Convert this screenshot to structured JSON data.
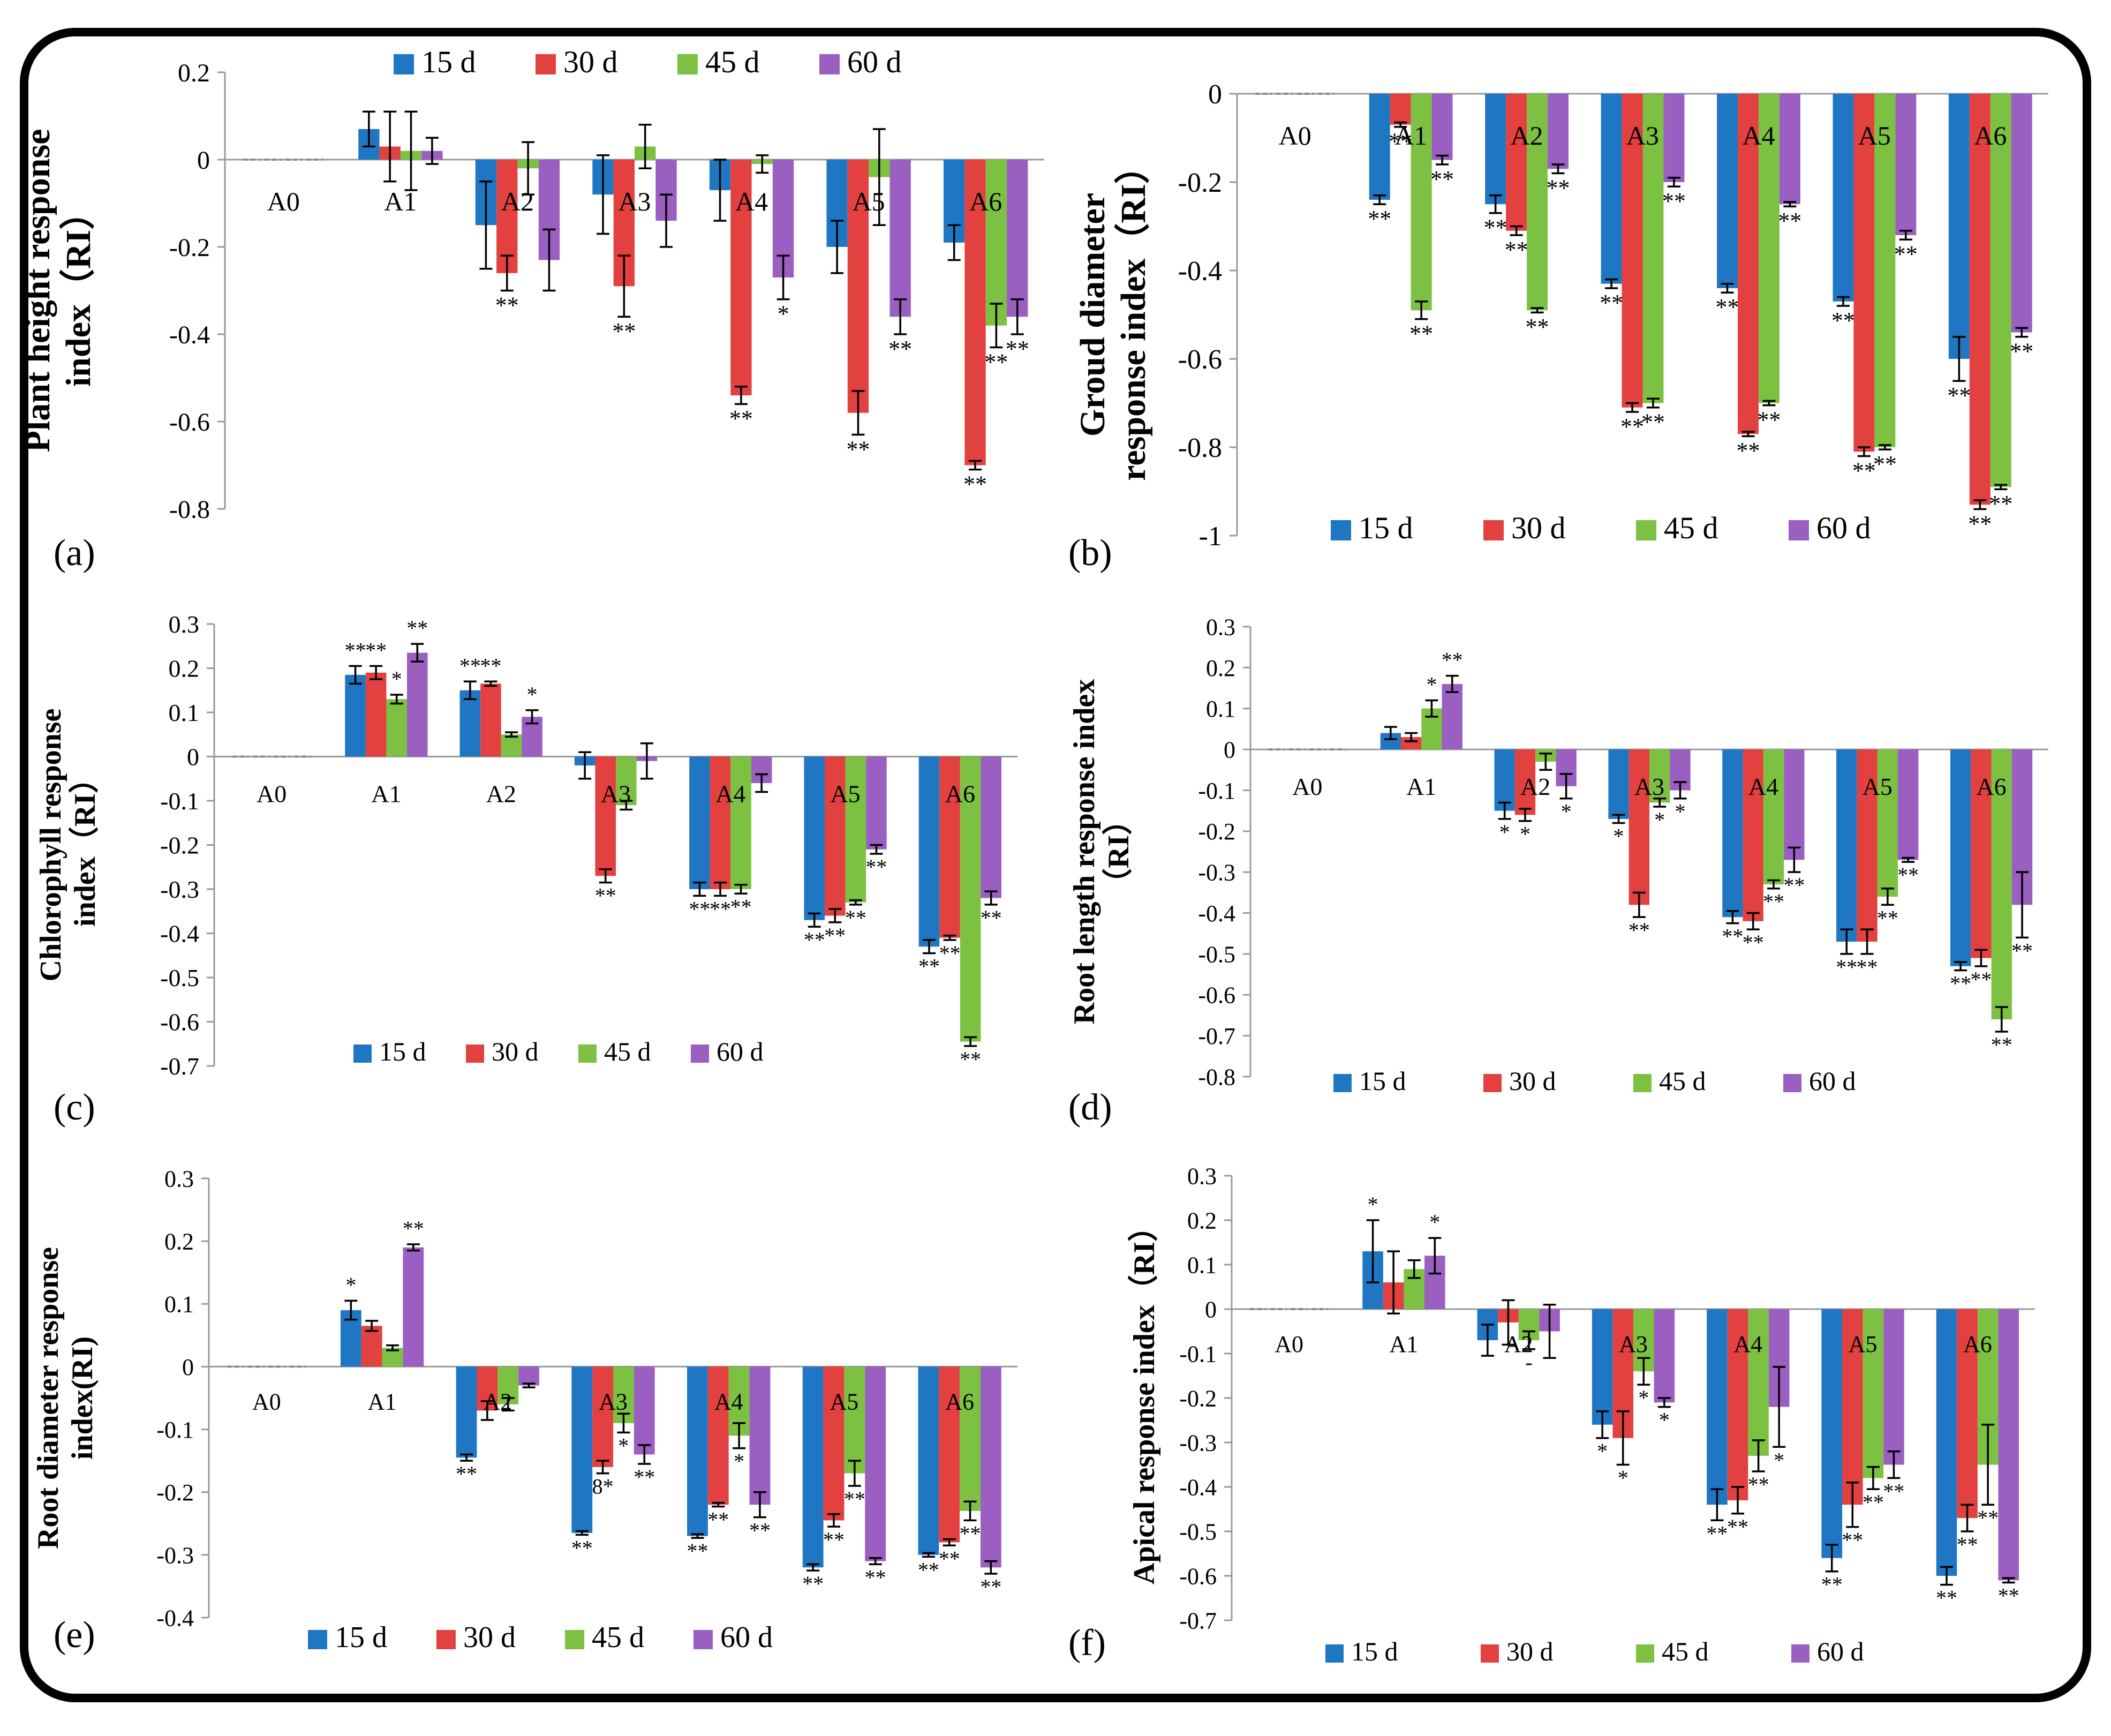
{
  "legend_labels": [
    "15 d",
    "30 d",
    "45 d",
    "60 d"
  ],
  "colors": {
    "15 d": "#1f77c4",
    "30 d": "#e34040",
    "45 d": "#7cc142",
    "60 d": "#9a5fc1"
  },
  "chart_data": [
    {
      "panel": "(a)",
      "type": "bar",
      "ylabel": [
        "Plant height response",
        "index（RI）"
      ],
      "ylim": [
        -0.8,
        0.2
      ],
      "yticks": [
        "0.2",
        "0",
        "-0.2",
        "-0.4",
        "-0.6",
        "-0.8"
      ],
      "legend_position": "top",
      "categories": [
        "A0",
        "A1",
        "A2",
        "A3",
        "A4",
        "A5",
        "A6"
      ],
      "series": [
        {
          "name": "15 d",
          "values": [
            0,
            0.07,
            -0.15,
            -0.08,
            -0.07,
            -0.2,
            -0.19
          ],
          "errors": [
            0,
            0.04,
            0.1,
            0.09,
            0.07,
            0.06,
            0.04
          ],
          "sig": [
            "",
            "",
            "",
            "",
            "",
            "",
            ""
          ]
        },
        {
          "name": "30 d",
          "values": [
            0,
            0.03,
            -0.26,
            -0.29,
            -0.54,
            -0.58,
            -0.7
          ],
          "errors": [
            0,
            0.08,
            0.04,
            0.07,
            0.02,
            0.05,
            0.01
          ],
          "sig": [
            "",
            "",
            "**",
            "**",
            "**",
            "**",
            "**"
          ]
        },
        {
          "name": "45 d",
          "values": [
            0,
            0.02,
            -0.02,
            0.03,
            -0.01,
            -0.04,
            -0.38
          ],
          "errors": [
            0,
            0.09,
            0.06,
            0.05,
            0.02,
            0.11,
            0.05
          ],
          "sig": [
            "",
            "",
            "",
            "",
            "",
            "",
            "**"
          ]
        },
        {
          "name": "60 d",
          "values": [
            0,
            0.02,
            -0.23,
            -0.14,
            -0.27,
            -0.36,
            -0.36
          ],
          "errors": [
            0,
            0.03,
            0.07,
            0.06,
            0.05,
            0.04,
            0.04
          ],
          "sig": [
            "",
            "",
            "",
            "",
            "*",
            "**",
            "**"
          ]
        }
      ]
    },
    {
      "panel": "(b)",
      "type": "bar",
      "ylabel": [
        "Groud diameter",
        "response index（RI）"
      ],
      "ylim": [
        -1,
        0
      ],
      "yticks": [
        "0",
        "-0.2",
        "-0.4",
        "-0.6",
        "-0.8",
        "-1"
      ],
      "legend_position": "bottom",
      "categories": [
        "A0",
        "A1",
        "A2",
        "A3",
        "A4",
        "A5",
        "A6"
      ],
      "series": [
        {
          "name": "15 d",
          "values": [
            0,
            -0.24,
            -0.25,
            -0.43,
            -0.44,
            -0.47,
            -0.6
          ],
          "errors": [
            0,
            0.01,
            0.02,
            0.01,
            0.01,
            0.01,
            0.05
          ],
          "sig": [
            "",
            "**",
            "**",
            "**",
            "**",
            "**",
            "**"
          ]
        },
        {
          "name": "30 d",
          "values": [
            0,
            -0.07,
            -0.31,
            -0.71,
            -0.77,
            -0.81,
            -0.93
          ],
          "errors": [
            0,
            0.005,
            0.01,
            0.01,
            0.005,
            0.01,
            0.01
          ],
          "sig": [
            "",
            "**",
            "**",
            "**",
            "**",
            "**",
            "**"
          ]
        },
        {
          "name": "45 d",
          "values": [
            0,
            -0.49,
            -0.49,
            -0.7,
            -0.7,
            -0.8,
            -0.89
          ],
          "errors": [
            0,
            0.02,
            0.005,
            0.01,
            0.005,
            0.005,
            0.005
          ],
          "sig": [
            "",
            "**",
            "**",
            "**",
            "**",
            "**",
            "**"
          ]
        },
        {
          "name": "60 d",
          "values": [
            0,
            -0.15,
            -0.17,
            -0.2,
            -0.25,
            -0.32,
            -0.54
          ],
          "errors": [
            0,
            0.01,
            0.01,
            0.01,
            0.005,
            0.01,
            0.01
          ],
          "sig": [
            "",
            "**",
            "**",
            "**",
            "**",
            "**",
            "**"
          ]
        }
      ]
    },
    {
      "panel": "(c)",
      "type": "bar",
      "ylabel": [
        "Chlorophyll response",
        "index（RI）"
      ],
      "ylim": [
        -0.7,
        0.3
      ],
      "yticks": [
        "0.3",
        "0.2",
        "0.1",
        "0",
        "-0.1",
        "-0.2",
        "-0.3",
        "-0.4",
        "-0.5",
        "-0.6",
        "-0.7"
      ],
      "legend_position": "bottom",
      "categories": [
        "A0",
        "A1",
        "A2",
        "A3",
        "A4",
        "A5",
        "A6"
      ],
      "series": [
        {
          "name": "15 d",
          "values": [
            0,
            0.185,
            0.15,
            -0.02,
            -0.3,
            -0.37,
            -0.43
          ],
          "errors": [
            0,
            0.02,
            0.02,
            0.03,
            0.015,
            0.015,
            0.015
          ],
          "sig": [
            "",
            "**",
            "**",
            "",
            "**",
            "**",
            "**"
          ]
        },
        {
          "name": "30 d",
          "values": [
            0,
            0.19,
            0.165,
            -0.27,
            -0.3,
            -0.36,
            -0.41
          ],
          "errors": [
            0,
            0.015,
            0.005,
            0.015,
            0.015,
            0.015,
            0.005
          ],
          "sig": [
            "",
            "**",
            "**",
            "**",
            "**",
            "**",
            "**"
          ]
        },
        {
          "name": "45 d",
          "values": [
            0,
            0.13,
            0.05,
            -0.11,
            -0.3,
            -0.33,
            -0.645
          ],
          "errors": [
            0,
            0.01,
            0.005,
            0.01,
            0.01,
            0.005,
            0.01
          ],
          "sig": [
            "",
            "*",
            "",
            "",
            "**",
            "**",
            "**"
          ]
        },
        {
          "name": "60 d",
          "values": [
            0,
            0.235,
            0.09,
            -0.01,
            -0.06,
            -0.21,
            -0.32
          ],
          "errors": [
            0,
            0.02,
            0.015,
            0.04,
            0.02,
            0.01,
            0.015
          ],
          "sig": [
            "",
            "**",
            "*",
            "",
            "",
            "**",
            "**"
          ]
        }
      ]
    },
    {
      "panel": "(d)",
      "type": "bar",
      "ylabel": [
        "Root length response index",
        "（RI）"
      ],
      "ylim": [
        -0.8,
        0.3
      ],
      "yticks": [
        "0.3",
        "0.2",
        "0.1",
        "0",
        "-0.1",
        "-0.2",
        "-0.3",
        "-0.4",
        "-0.5",
        "-0.6",
        "-0.7",
        "-0.8"
      ],
      "legend_position": "bottom",
      "categories": [
        "A0",
        "A1",
        "A2",
        "A3",
        "A4",
        "A5",
        "A6"
      ],
      "series": [
        {
          "name": "15 d",
          "values": [
            0,
            0.04,
            -0.15,
            -0.17,
            -0.41,
            -0.47,
            -0.53
          ],
          "errors": [
            0,
            0.015,
            0.02,
            0.01,
            0.015,
            0.03,
            0.01
          ],
          "sig": [
            "",
            "",
            "*",
            "*",
            "**",
            "**",
            "**"
          ]
        },
        {
          "name": "30 d",
          "values": [
            0,
            0.03,
            -0.16,
            -0.38,
            -0.42,
            -0.47,
            -0.51
          ],
          "errors": [
            0,
            0.01,
            0.015,
            0.03,
            0.02,
            0.03,
            0.02
          ],
          "sig": [
            "",
            "",
            "*",
            "**",
            "**",
            "**",
            "**"
          ]
        },
        {
          "name": "45 d",
          "values": [
            0,
            0.1,
            -0.03,
            -0.13,
            -0.33,
            -0.36,
            -0.66
          ],
          "errors": [
            0,
            0.02,
            0.02,
            0.01,
            0.01,
            0.02,
            0.03
          ],
          "sig": [
            "",
            "*",
            "",
            "*",
            "**",
            "**",
            "**"
          ]
        },
        {
          "name": "60 d",
          "values": [
            0,
            0.16,
            -0.09,
            -0.1,
            -0.27,
            -0.27,
            -0.38
          ],
          "errors": [
            0,
            0.02,
            0.03,
            0.02,
            0.03,
            0.005,
            0.08
          ],
          "sig": [
            "",
            "**",
            "*",
            "*",
            "**",
            "**",
            "**"
          ]
        }
      ]
    },
    {
      "panel": "(e)",
      "type": "bar",
      "ylabel": [
        "Root diameter response",
        "index(RI)"
      ],
      "ylim": [
        -0.4,
        0.3
      ],
      "yticks": [
        "0.3",
        "0.2",
        "0.1",
        "0",
        "-0.1",
        "-0.2",
        "-0.3",
        "-0.4"
      ],
      "legend_position": "bottom",
      "categories": [
        "A0",
        "A1",
        "A2",
        "A3",
        "A4",
        "A5",
        "A6"
      ],
      "series": [
        {
          "name": "15 d",
          "values": [
            0,
            0.09,
            -0.145,
            -0.265,
            -0.27,
            -0.32,
            -0.3
          ],
          "errors": [
            0,
            0.015,
            0.005,
            0.003,
            0.003,
            0.005,
            0.003
          ],
          "sig": [
            "",
            "*",
            "**",
            "**",
            "**",
            "**",
            "**"
          ]
        },
        {
          "name": "30 d",
          "values": [
            0,
            0.065,
            -0.07,
            -0.16,
            -0.22,
            -0.245,
            -0.28
          ],
          "errors": [
            0,
            0.008,
            0.015,
            0.01,
            0.003,
            0.01,
            0.005
          ],
          "sig": [
            "",
            "",
            "",
            "8*",
            "**",
            "**",
            "**"
          ]
        },
        {
          "name": "45 d",
          "values": [
            0,
            0.03,
            -0.06,
            -0.09,
            -0.11,
            -0.17,
            -0.23
          ],
          "errors": [
            0,
            0.004,
            0.01,
            0.015,
            0.02,
            0.02,
            0.015
          ],
          "sig": [
            "",
            "",
            "",
            "*",
            "*",
            "**",
            "**"
          ]
        },
        {
          "name": "60 d",
          "values": [
            0,
            0.19,
            -0.03,
            -0.14,
            -0.22,
            -0.31,
            -0.32
          ],
          "errors": [
            0,
            0.005,
            0.003,
            0.015,
            0.02,
            0.005,
            0.01
          ],
          "sig": [
            "",
            "**",
            "",
            "**",
            "**",
            "**",
            "**"
          ]
        }
      ]
    },
    {
      "panel": "(f)",
      "type": "bar",
      "ylabel": [
        "Apical response index（RI）"
      ],
      "ylim": [
        -0.7,
        0.3
      ],
      "yticks": [
        "0.3",
        "0.2",
        "0.1",
        "0",
        "-0.1",
        "-0.2",
        "-0.3",
        "-0.4",
        "-0.5",
        "-0.6",
        "-0.7"
      ],
      "legend_position": "bottom",
      "categories": [
        "A0",
        "A1",
        "A2",
        "A3",
        "A4",
        "A5",
        "A6"
      ],
      "series": [
        {
          "name": "15 d",
          "values": [
            0,
            0.13,
            -0.07,
            -0.26,
            -0.44,
            -0.56,
            -0.6
          ],
          "errors": [
            0,
            0.07,
            0.035,
            0.03,
            0.035,
            0.03,
            0.02
          ],
          "sig": [
            "",
            "*",
            "",
            "*",
            "**",
            "**",
            "**"
          ]
        },
        {
          "name": "30 d",
          "values": [
            0,
            0.06,
            -0.03,
            -0.29,
            -0.43,
            -0.44,
            -0.47
          ],
          "errors": [
            0,
            0.07,
            0.05,
            0.06,
            0.03,
            0.05,
            0.03
          ],
          "sig": [
            "",
            "",
            "",
            "*",
            "**",
            "**",
            "**"
          ]
        },
        {
          "name": "45 d",
          "values": [
            0,
            0.09,
            -0.07,
            -0.14,
            -0.33,
            -0.38,
            -0.35
          ],
          "errors": [
            0,
            0.02,
            0.02,
            0.03,
            0.035,
            0.025,
            0.09
          ],
          "sig": [
            "",
            "",
            "-",
            "*",
            "**",
            "**",
            "**"
          ]
        },
        {
          "name": "60 d",
          "values": [
            0,
            0.12,
            -0.05,
            -0.21,
            -0.22,
            -0.35,
            -0.61
          ],
          "errors": [
            0,
            0.04,
            0.06,
            0.01,
            0.09,
            0.03,
            0.005
          ],
          "sig": [
            "",
            "*",
            "",
            "*",
            "*",
            "**",
            "**"
          ]
        }
      ]
    }
  ]
}
